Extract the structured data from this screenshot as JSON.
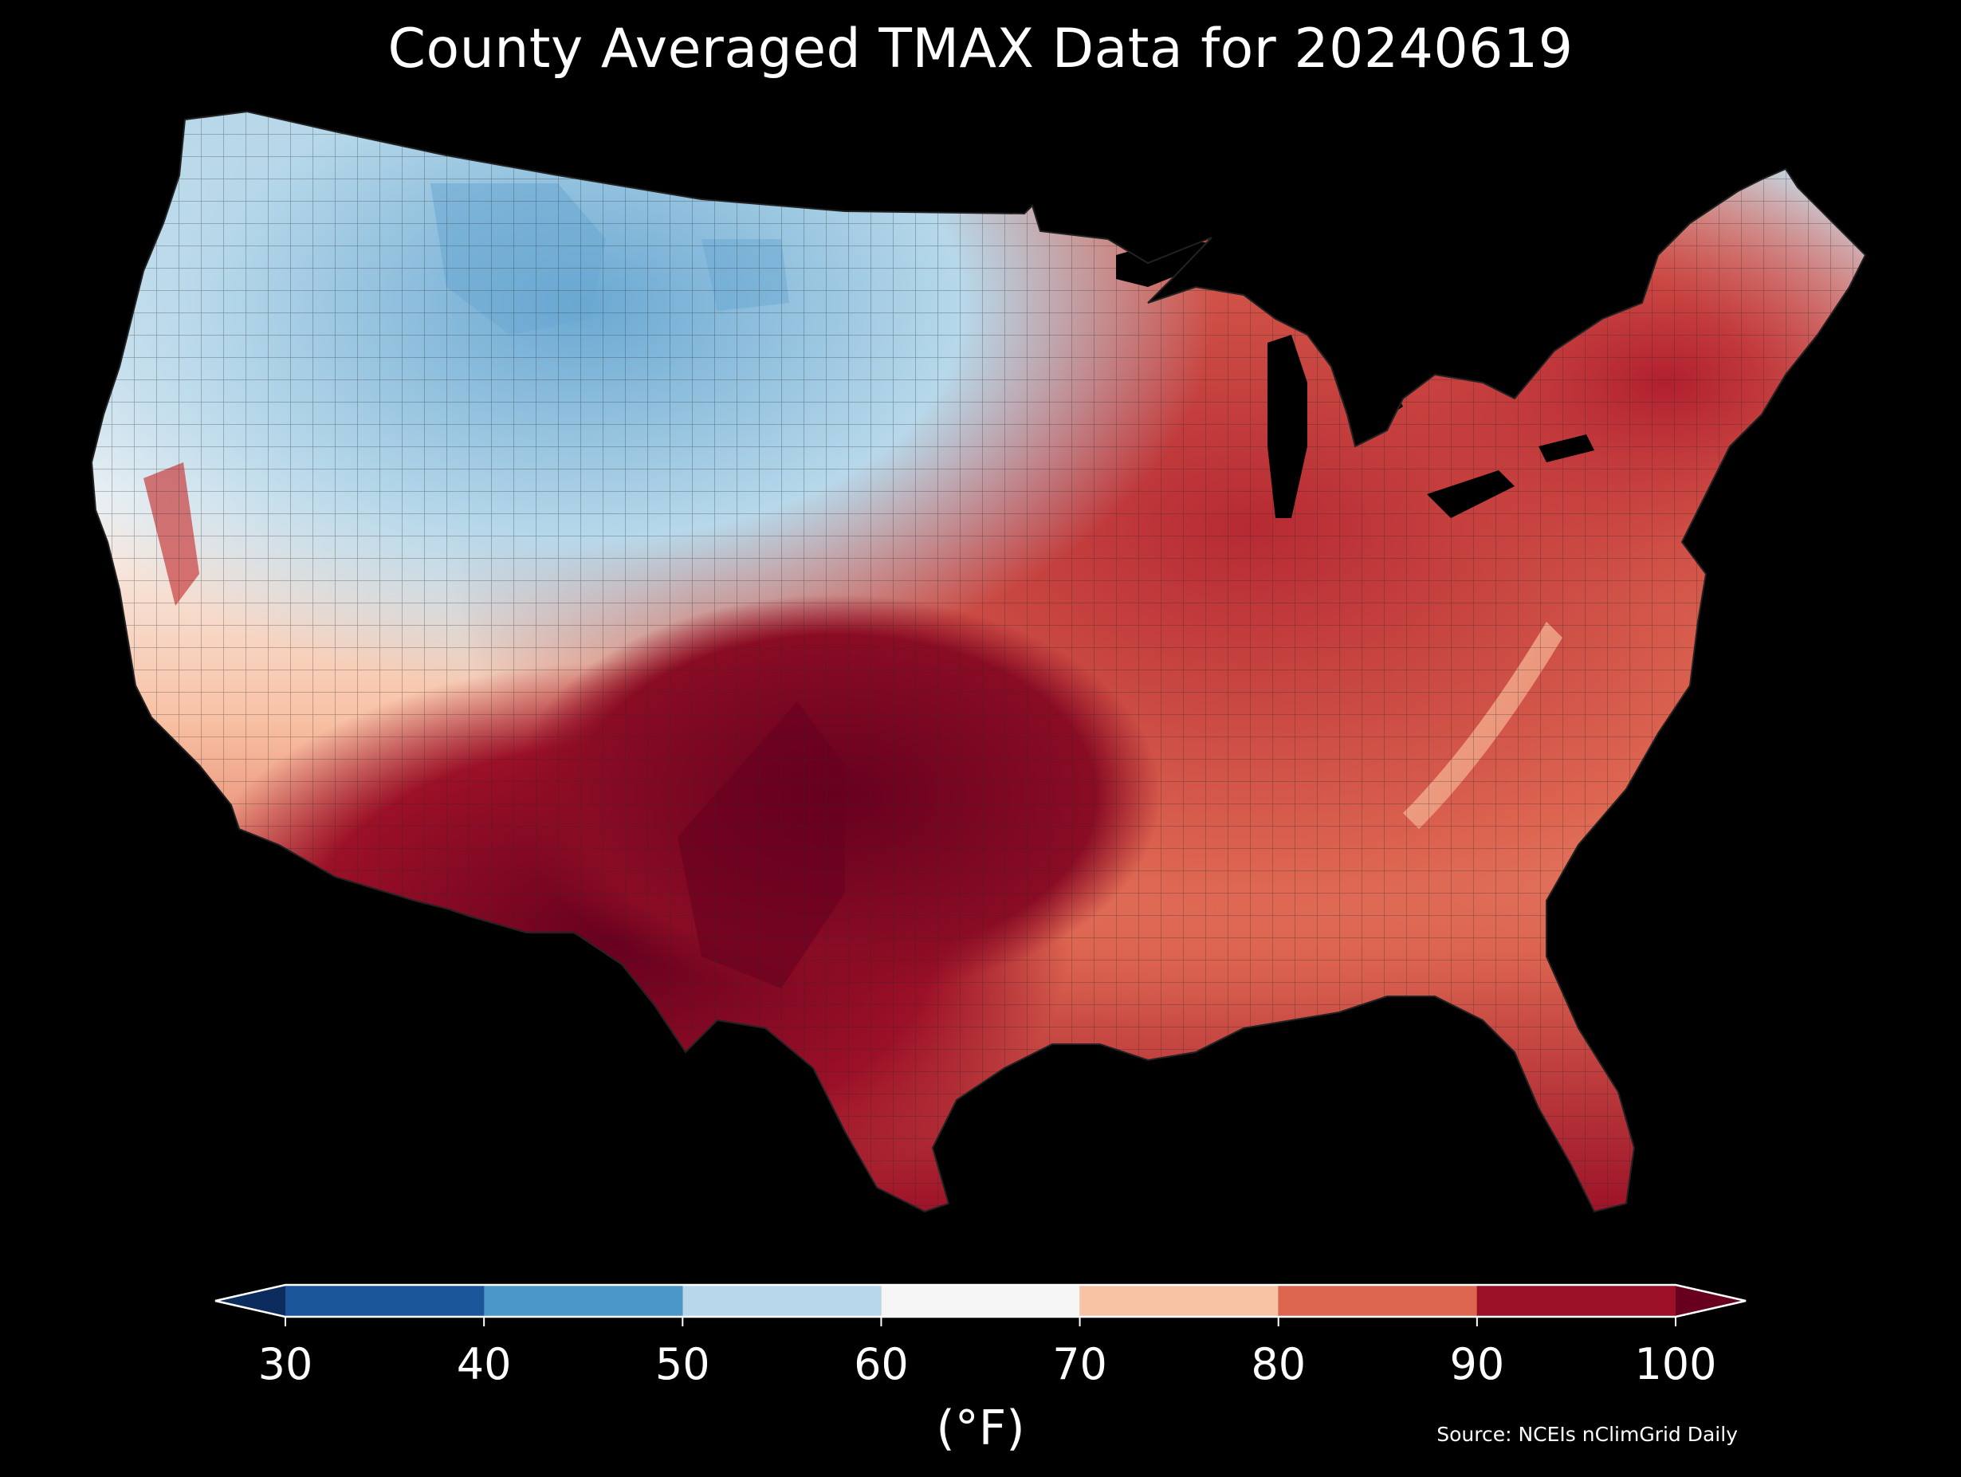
{
  "title": "County Averaged TMAX Data for 20240619",
  "colorbar": {
    "ticks": [
      "30",
      "40",
      "50",
      "60",
      "70",
      "80",
      "90",
      "100"
    ],
    "units": "(°F)",
    "extend": "both",
    "under_color": "#0b2c5c",
    "over_color": "#67001f",
    "bins": [
      {
        "from": 30,
        "to": 40,
        "color": "#1b569b"
      },
      {
        "from": 40,
        "to": 50,
        "color": "#4b97c7"
      },
      {
        "from": 50,
        "to": 60,
        "color": "#b7d8ea"
      },
      {
        "from": 60,
        "to": 70,
        "color": "#f6f6f6"
      },
      {
        "from": 70,
        "to": 80,
        "color": "#f8c2a5"
      },
      {
        "from": 80,
        "to": 90,
        "color": "#dd6651"
      },
      {
        "from": 90,
        "to": 100,
        "color": "#9b1027"
      }
    ]
  },
  "source": "Source: NCEIs nClimGrid Daily",
  "map": {
    "region": "Contiguous United States",
    "variable": "TMAX",
    "units": "°F",
    "background": "#000000",
    "county_border_color": "#333333"
  }
}
